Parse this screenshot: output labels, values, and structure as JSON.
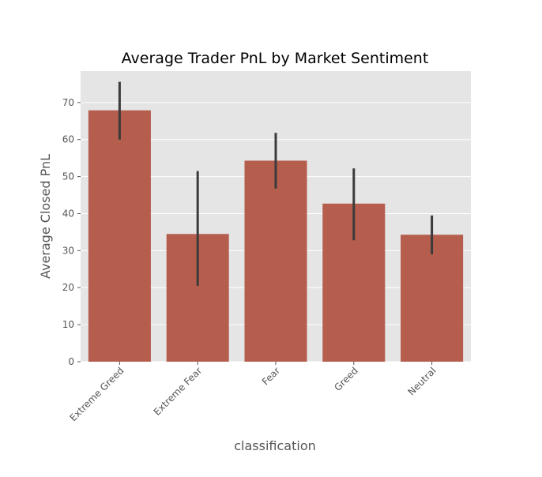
{
  "chart_data": {
    "type": "bar",
    "title": "Average Trader PnL by Market Sentiment",
    "xlabel": "classification",
    "ylabel": "Average Closed PnL",
    "categories": [
      "Extreme Greed",
      "Extreme Fear",
      "Fear",
      "Greed",
      "Neutral"
    ],
    "values": [
      67.9,
      34.5,
      54.3,
      42.7,
      34.3
    ],
    "error_low": [
      60.0,
      20.5,
      46.8,
      32.8,
      29.0
    ],
    "error_high": [
      75.6,
      51.5,
      61.8,
      52.2,
      39.5
    ],
    "ylim": [
      0,
      78.5
    ],
    "yticks": [
      0,
      10,
      20,
      30,
      40,
      50,
      60,
      70
    ],
    "grid": true,
    "style": "ggplot",
    "colors": {
      "bar": "#b55e4d",
      "error_bar": "#3b3b3b",
      "plot_background": "#e5e5e5",
      "grid": "#ffffff",
      "text": "#555555"
    }
  }
}
